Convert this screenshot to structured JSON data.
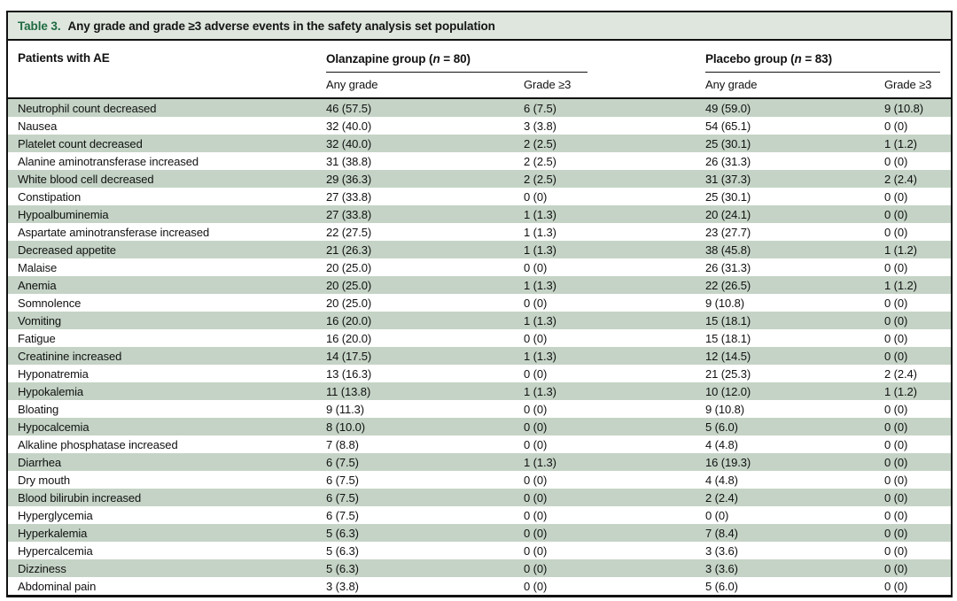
{
  "title": {
    "label": "Table 3.",
    "caption": "Any grade and grade ≥3 adverse events in the safety analysis set population"
  },
  "colors": {
    "stripe": "#c4d3c5",
    "titlebar": "#dee6de",
    "accent": "#1f6b42"
  },
  "table": {
    "row_header": "Patients with AE",
    "groups": [
      {
        "prefix": "Olanzapine group (",
        "n": "n",
        "suffix": " = 80)"
      },
      {
        "prefix": "Placebo group (",
        "n": "n",
        "suffix": " = 83)"
      }
    ],
    "sub_headers": [
      "Any grade",
      "Grade ≥3",
      "Any grade",
      "Grade ≥3"
    ],
    "rows": [
      {
        "name": "Neutrophil count decreased",
        "ola_any": "46 (57.5)",
        "ola_g3": "6 (7.5)",
        "pla_any": "49 (59.0)",
        "pla_g3": "9 (10.8)"
      },
      {
        "name": "Nausea",
        "ola_any": "32 (40.0)",
        "ola_g3": "3 (3.8)",
        "pla_any": "54 (65.1)",
        "pla_g3": "0 (0)"
      },
      {
        "name": "Platelet count decreased",
        "ola_any": "32 (40.0)",
        "ola_g3": "2 (2.5)",
        "pla_any": "25 (30.1)",
        "pla_g3": "1 (1.2)"
      },
      {
        "name": "Alanine aminotransferase increased",
        "ola_any": "31 (38.8)",
        "ola_g3": "2 (2.5)",
        "pla_any": "26 (31.3)",
        "pla_g3": "0 (0)"
      },
      {
        "name": "White blood cell decreased",
        "ola_any": "29 (36.3)",
        "ola_g3": "2 (2.5)",
        "pla_any": "31 (37.3)",
        "pla_g3": "2 (2.4)"
      },
      {
        "name": "Constipation",
        "ola_any": "27 (33.8)",
        "ola_g3": "0 (0)",
        "pla_any": "25 (30.1)",
        "pla_g3": "0 (0)"
      },
      {
        "name": "Hypoalbuminemia",
        "ola_any": "27 (33.8)",
        "ola_g3": "1 (1.3)",
        "pla_any": "20 (24.1)",
        "pla_g3": "0 (0)"
      },
      {
        "name": "Aspartate aminotransferase increased",
        "ola_any": "22 (27.5)",
        "ola_g3": "1 (1.3)",
        "pla_any": "23 (27.7)",
        "pla_g3": "0 (0)"
      },
      {
        "name": "Decreased appetite",
        "ola_any": "21 (26.3)",
        "ola_g3": "1 (1.3)",
        "pla_any": "38 (45.8)",
        "pla_g3": "1 (1.2)"
      },
      {
        "name": "Malaise",
        "ola_any": "20 (25.0)",
        "ola_g3": "0 (0)",
        "pla_any": "26 (31.3)",
        "pla_g3": "0 (0)"
      },
      {
        "name": "Anemia",
        "ola_any": "20 (25.0)",
        "ola_g3": "1 (1.3)",
        "pla_any": "22 (26.5)",
        "pla_g3": "1 (1.2)"
      },
      {
        "name": "Somnolence",
        "ola_any": "20 (25.0)",
        "ola_g3": "0 (0)",
        "pla_any": "9 (10.8)",
        "pla_g3": "0 (0)"
      },
      {
        "name": "Vomiting",
        "ola_any": "16 (20.0)",
        "ola_g3": "1 (1.3)",
        "pla_any": "15 (18.1)",
        "pla_g3": "0 (0)"
      },
      {
        "name": "Fatigue",
        "ola_any": "16 (20.0)",
        "ola_g3": "0 (0)",
        "pla_any": "15 (18.1)",
        "pla_g3": "0 (0)"
      },
      {
        "name": "Creatinine increased",
        "ola_any": "14 (17.5)",
        "ola_g3": "1 (1.3)",
        "pla_any": "12 (14.5)",
        "pla_g3": "0 (0)"
      },
      {
        "name": "Hyponatremia",
        "ola_any": "13 (16.3)",
        "ola_g3": "0 (0)",
        "pla_any": "21 (25.3)",
        "pla_g3": "2 (2.4)"
      },
      {
        "name": "Hypokalemia",
        "ola_any": "11 (13.8)",
        "ola_g3": "1 (1.3)",
        "pla_any": "10 (12.0)",
        "pla_g3": "1 (1.2)"
      },
      {
        "name": "Bloating",
        "ola_any": "9 (11.3)",
        "ola_g3": "0 (0)",
        "pla_any": "9 (10.8)",
        "pla_g3": "0 (0)"
      },
      {
        "name": "Hypocalcemia",
        "ola_any": "8 (10.0)",
        "ola_g3": "0 (0)",
        "pla_any": "5 (6.0)",
        "pla_g3": "0 (0)"
      },
      {
        "name": "Alkaline phosphatase increased",
        "ola_any": "7 (8.8)",
        "ola_g3": "0 (0)",
        "pla_any": "4 (4.8)",
        "pla_g3": "0 (0)"
      },
      {
        "name": "Diarrhea",
        "ola_any": "6 (7.5)",
        "ola_g3": "1 (1.3)",
        "pla_any": "16 (19.3)",
        "pla_g3": "0 (0)"
      },
      {
        "name": "Dry mouth",
        "ola_any": "6 (7.5)",
        "ola_g3": "0 (0)",
        "pla_any": "4 (4.8)",
        "pla_g3": "0 (0)"
      },
      {
        "name": "Blood bilirubin increased",
        "ola_any": "6 (7.5)",
        "ola_g3": "0 (0)",
        "pla_any": "2 (2.4)",
        "pla_g3": "0 (0)"
      },
      {
        "name": "Hyperglycemia",
        "ola_any": "6 (7.5)",
        "ola_g3": "0 (0)",
        "pla_any": "0 (0)",
        "pla_g3": "0 (0)"
      },
      {
        "name": "Hyperkalemia",
        "ola_any": "5 (6.3)",
        "ola_g3": "0 (0)",
        "pla_any": "7 (8.4)",
        "pla_g3": "0 (0)"
      },
      {
        "name": "Hypercalcemia",
        "ola_any": "5 (6.3)",
        "ola_g3": "0 (0)",
        "pla_any": "3 (3.6)",
        "pla_g3": "0 (0)"
      },
      {
        "name": "Dizziness",
        "ola_any": "5 (6.3)",
        "ola_g3": "0 (0)",
        "pla_any": "3 (3.6)",
        "pla_g3": "0 (0)"
      },
      {
        "name": "Abdominal pain",
        "ola_any": "3 (3.8)",
        "ola_g3": "0 (0)",
        "pla_any": "5 (6.0)",
        "pla_g3": "0 (0)"
      }
    ]
  }
}
